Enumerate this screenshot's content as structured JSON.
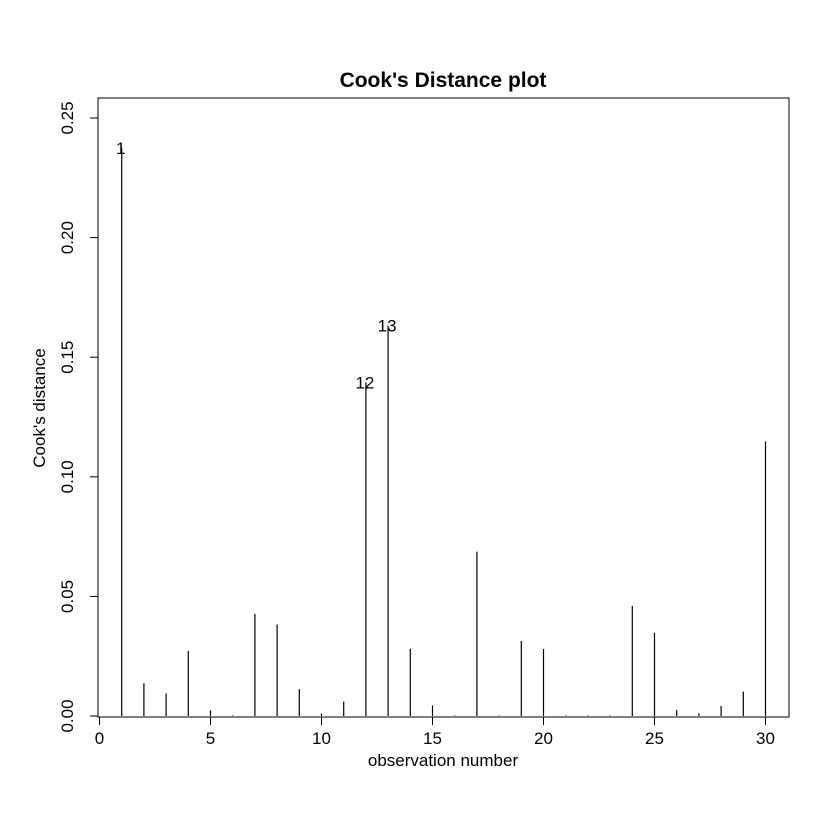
{
  "chart_data": {
    "type": "bar",
    "title": "Cook's Distance plot",
    "xlabel": "observation number",
    "ylabel": "Cook's distance",
    "xlim": [
      0,
      31
    ],
    "ylim": [
      0,
      0.25
    ],
    "x_ticks": [
      0,
      5,
      10,
      15,
      20,
      25,
      30
    ],
    "x_tick_labels": [
      "0",
      "5",
      "10",
      "15",
      "20",
      "25",
      "30"
    ],
    "y_ticks": [
      0,
      0.05,
      0.1,
      0.15,
      0.2,
      0.25
    ],
    "y_tick_labels": [
      "0.00",
      "0.05",
      "0.10",
      "0.15",
      "0.20",
      "0.25"
    ],
    "grid": false,
    "x": [
      1,
      2,
      3,
      4,
      5,
      6,
      7,
      8,
      9,
      10,
      11,
      12,
      13,
      14,
      15,
      16,
      17,
      18,
      19,
      20,
      21,
      22,
      23,
      24,
      25,
      26,
      27,
      28,
      29,
      30
    ],
    "values": [
      0.2375,
      0.0137,
      0.0094,
      0.0272,
      0.0024,
      0.0,
      0.0427,
      0.0382,
      0.0112,
      0.001,
      0.006,
      0.1395,
      0.1632,
      0.0281,
      0.0044,
      0.0002,
      0.0687,
      0.0,
      0.0314,
      0.028,
      0.0002,
      0.0002,
      0.0,
      0.046,
      0.0348,
      0.0025,
      0.0011,
      0.0042,
      0.0102,
      0.1148
    ],
    "labeled_points": [
      {
        "x": 1,
        "label": "1"
      },
      {
        "x": 12,
        "label": "12"
      },
      {
        "x": 13,
        "label": "13"
      }
    ]
  }
}
